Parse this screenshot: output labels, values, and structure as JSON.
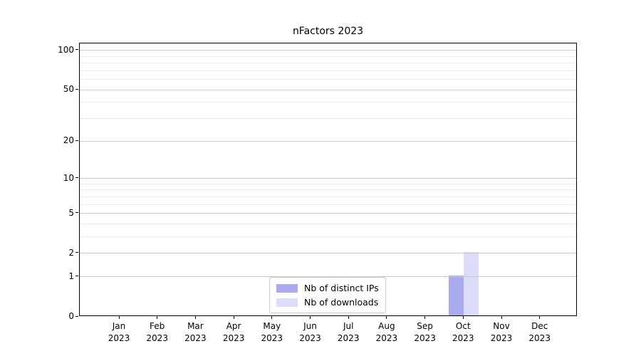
{
  "chart_data": {
    "type": "bar",
    "title": "nFactors 2023",
    "categories": [
      "Jan",
      "Feb",
      "Mar",
      "Apr",
      "May",
      "Jun",
      "Jul",
      "Aug",
      "Sep",
      "Oct",
      "Nov",
      "Dec"
    ],
    "year_label": "2023",
    "series": [
      {
        "name": "Nb of distinct IPs",
        "color": "#aaaaee",
        "values": [
          0,
          0,
          0,
          0,
          0,
          0,
          0,
          0,
          0,
          1,
          0,
          0
        ]
      },
      {
        "name": "Nb of downloads",
        "color": "#dcdcf8",
        "values": [
          0,
          0,
          0,
          0,
          0,
          0,
          0,
          0,
          0,
          2,
          0,
          0
        ]
      }
    ],
    "xlabel": "",
    "ylabel": "",
    "yscale": "log1p",
    "ylim": [
      0,
      113
    ],
    "ymajor_ticks": [
      0,
      1,
      2,
      5,
      10,
      20,
      50,
      100
    ],
    "yminor_ticks": [
      3,
      4,
      6,
      7,
      8,
      9,
      30,
      40,
      60,
      70,
      80,
      90
    ],
    "grid": true,
    "legend_position": "lower center",
    "colors": {
      "axis": "#000000",
      "grid_major": "#c8c8c8",
      "grid_minor": "#ececec",
      "text": "#000000",
      "background": "#ffffff"
    }
  }
}
